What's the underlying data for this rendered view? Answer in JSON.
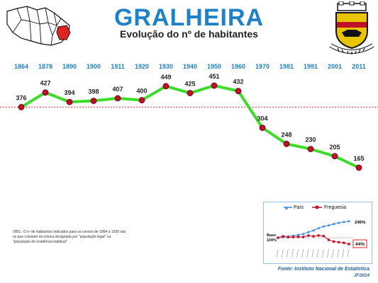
{
  "title": "GRALHEIRA",
  "subtitle": "Evolução do nº de habitantes",
  "note": "OBS.: O nº de habitantes indicados para os censos de 1864 a 1930 são os que constam da coluna designada por \"população legal\" ou \"população de residência habitual\"",
  "source": "Fonte: Instituto Nacional de Estatística",
  "author": "JF/2014",
  "colors": {
    "title": "#1e82c8",
    "line": "#3cdc28",
    "marker": "#c0102a",
    "reference": "#e02020",
    "years": "#1f7fc1",
    "inset_pais": "#3a8ad8",
    "inset_freguesia": "#c0102a"
  },
  "chart_data": [
    {
      "type": "line",
      "title": "Evolução do nº de habitantes",
      "x": [
        "1864",
        "1878",
        "1890",
        "1900",
        "1911",
        "1920",
        "1930",
        "1940",
        "1950",
        "1960",
        "1970",
        "1981",
        "1991",
        "2001",
        "2011"
      ],
      "series": [
        {
          "values": [
            376,
            427,
            394,
            398,
            407,
            400,
            449,
            425,
            451,
            432,
            304,
            248,
            230,
            205,
            165
          ]
        }
      ],
      "reference_line": 376,
      "ylim": [
        140,
        470
      ],
      "grid": false,
      "data_labels": true
    },
    {
      "type": "line",
      "legend": [
        "País",
        "Freguesia"
      ],
      "legend_position": "top",
      "series": [
        {
          "name": "País",
          "values": [
            100,
            105,
            112,
            118,
            126,
            133,
            150,
            165,
            185,
            200,
            210,
            222,
            232,
            240,
            246
          ],
          "end_label": "246%"
        },
        {
          "name": "Freguesia",
          "values": [
            100,
            113,
            105,
            106,
            108,
            106,
            119,
            113,
            120,
            115,
            81,
            66,
            61,
            55,
            44
          ],
          "end_label": "44%"
        }
      ],
      "base_label": "Base 100%"
    }
  ],
  "inset_legend": {
    "pais": "País",
    "freguesia": "Freguesia"
  },
  "inset_labels": {
    "pais_end": "246%",
    "freguesia_end": "44%",
    "base": "Base",
    "base_value": "100%"
  }
}
